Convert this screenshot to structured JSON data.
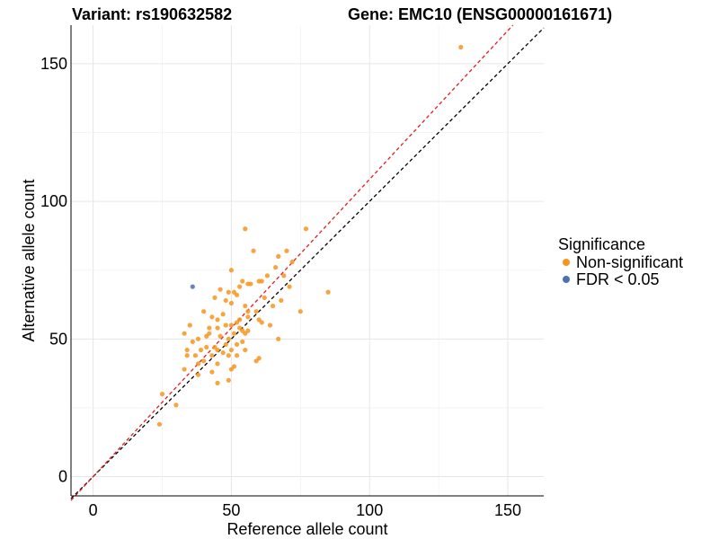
{
  "header": {
    "variant_title": "Variant: rs190632582",
    "gene_title": "Gene: EMC10 (ENSG00000161671)"
  },
  "chart_data": {
    "type": "scatter",
    "xlabel": "Reference allele count",
    "ylabel": "Alternative allele count",
    "xlim": [
      -8,
      163
    ],
    "ylim": [
      -7,
      164
    ],
    "xticks": [
      0,
      50,
      100,
      150
    ],
    "yticks": [
      0,
      50,
      100,
      150
    ],
    "grid": true,
    "legend": {
      "title": "Significance",
      "placement": "right",
      "entries": [
        {
          "label": "Non-significant",
          "color": "#F7941D"
        },
        {
          "label": "FDR < 0.05",
          "color": "#4A72B0"
        }
      ]
    },
    "reference_lines": [
      {
        "name": "identity",
        "slope": 1.0,
        "color": "#000000",
        "style": "dashed"
      },
      {
        "name": "fit",
        "slope": 1.08,
        "color": "#E41A1C",
        "style": "dashed"
      }
    ],
    "series": [
      {
        "name": "Non-significant",
        "color": "#F7941D",
        "points": [
          [
            133,
            156
          ],
          [
            77,
            90
          ],
          [
            55,
            90
          ],
          [
            85,
            67
          ],
          [
            70,
            82
          ],
          [
            58,
            82
          ],
          [
            67,
            80
          ],
          [
            66,
            76
          ],
          [
            72,
            78
          ],
          [
            50,
            75
          ],
          [
            63,
            73
          ],
          [
            69,
            73
          ],
          [
            60,
            71
          ],
          [
            61,
            71
          ],
          [
            54,
            71
          ],
          [
            56,
            70
          ],
          [
            57,
            70
          ],
          [
            53,
            69
          ],
          [
            71,
            69
          ],
          [
            46,
            68
          ],
          [
            49,
            67
          ],
          [
            51,
            67
          ],
          [
            52,
            66
          ],
          [
            44,
            65
          ],
          [
            62,
            65
          ],
          [
            48,
            64
          ],
          [
            68,
            64
          ],
          [
            50,
            63
          ],
          [
            65,
            62
          ],
          [
            55,
            62
          ],
          [
            56,
            60
          ],
          [
            40,
            60
          ],
          [
            59,
            60
          ],
          [
            47,
            59
          ],
          [
            75,
            60
          ],
          [
            43,
            58
          ],
          [
            56,
            58
          ],
          [
            45,
            57
          ],
          [
            53,
            57
          ],
          [
            52,
            56
          ],
          [
            60,
            57
          ],
          [
            61,
            56
          ],
          [
            48,
            55
          ],
          [
            50,
            55
          ],
          [
            64,
            55
          ],
          [
            35,
            55
          ],
          [
            42,
            54
          ],
          [
            45,
            54
          ],
          [
            53,
            54
          ],
          [
            54,
            53
          ],
          [
            56,
            53
          ],
          [
            33,
            52
          ],
          [
            42,
            52
          ],
          [
            51,
            52
          ],
          [
            55,
            52
          ],
          [
            41,
            51
          ],
          [
            46,
            51
          ],
          [
            49,
            50
          ],
          [
            38,
            50
          ],
          [
            54,
            49
          ],
          [
            67,
            50
          ],
          [
            36,
            49
          ],
          [
            48,
            48
          ],
          [
            52,
            48
          ],
          [
            41,
            47
          ],
          [
            44,
            47
          ],
          [
            34,
            46
          ],
          [
            39,
            46
          ],
          [
            45,
            46
          ],
          [
            50,
            46
          ],
          [
            55,
            46
          ],
          [
            47,
            45
          ],
          [
            34,
            44
          ],
          [
            37,
            44
          ],
          [
            43,
            44
          ],
          [
            49,
            44
          ],
          [
            52,
            44
          ],
          [
            60,
            43
          ],
          [
            59,
            42
          ],
          [
            40,
            42
          ],
          [
            38,
            41
          ],
          [
            45,
            41
          ],
          [
            51,
            40
          ],
          [
            33,
            39
          ],
          [
            50,
            39
          ],
          [
            43,
            38
          ],
          [
            38,
            37
          ],
          [
            49,
            35
          ],
          [
            45,
            34
          ],
          [
            30,
            26
          ],
          [
            25,
            30
          ],
          [
            24,
            19
          ]
        ]
      },
      {
        "name": "FDR < 0.05",
        "color": "#4A72B0",
        "points": [
          [
            36,
            69
          ]
        ]
      }
    ]
  }
}
